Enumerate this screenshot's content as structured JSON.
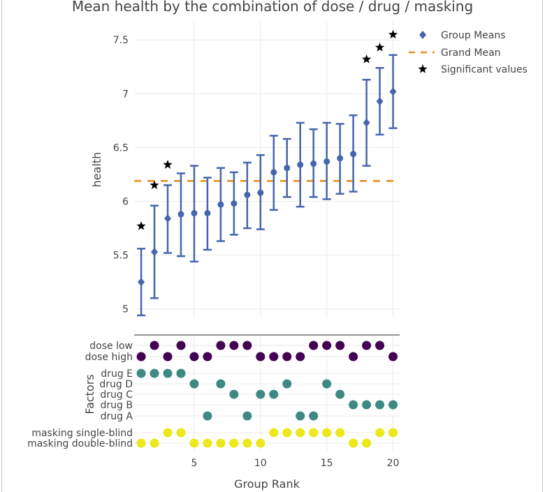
{
  "chart_data": [
    {
      "type": "scatter",
      "title": "Mean health by the combination of dose / drug / masking",
      "xlabel": "",
      "ylabel": "health",
      "ylim": [
        4.92,
        7.67
      ],
      "xlim": [
        0.47,
        20.5
      ],
      "yticks": [
        5,
        5.5,
        6,
        6.5,
        7,
        7.5
      ],
      "ytick_labels": [
        "5",
        "5.5",
        "6",
        "6.5",
        "7",
        "7.5"
      ],
      "grid": true,
      "legend": {
        "placement": "top-right",
        "entries": [
          {
            "label": "Group Means",
            "symbol": "diamond",
            "color": "#4565ad"
          },
          {
            "label": "Grand Mean",
            "symbol": "dash",
            "color": "#e8891c"
          },
          {
            "label": "Significant values",
            "symbol": "star",
            "color": "#000000"
          }
        ]
      },
      "grand_mean": 6.19,
      "x": [
        1,
        2,
        3,
        4,
        5,
        6,
        7,
        8,
        9,
        10,
        11,
        12,
        13,
        14,
        15,
        16,
        17,
        18,
        19,
        20
      ],
      "series": [
        {
          "name": "Group Means",
          "values": [
            5.25,
            5.53,
            5.84,
            5.88,
            5.89,
            5.89,
            5.97,
            5.98,
            6.06,
            6.08,
            6.27,
            6.31,
            6.34,
            6.35,
            6.37,
            6.4,
            6.44,
            6.73,
            6.93,
            7.02
          ],
          "error_upper": [
            5.56,
            5.96,
            6.15,
            6.26,
            6.33,
            6.22,
            6.31,
            6.27,
            6.36,
            6.43,
            6.61,
            6.58,
            6.73,
            6.67,
            6.73,
            6.72,
            6.8,
            7.13,
            7.24,
            7.36
          ],
          "error_lower": [
            4.94,
            5.1,
            5.52,
            5.49,
            5.44,
            5.55,
            5.63,
            5.69,
            5.75,
            5.74,
            5.92,
            6.04,
            5.95,
            6.04,
            6.02,
            6.07,
            6.09,
            6.33,
            6.62,
            6.68
          ]
        },
        {
          "name": "Significant values",
          "x": [
            1,
            2,
            3,
            18,
            19,
            20
          ],
          "values": [
            5.77,
            6.15,
            6.34,
            7.32,
            7.43,
            7.55
          ]
        }
      ],
      "colors": {
        "means": "#4565ad",
        "grand_mean": "#e8891c",
        "star": "#000000",
        "grid": "#ebebeb"
      }
    },
    {
      "type": "scatter",
      "title": "",
      "xlabel": "Group Rank",
      "ylabel": "Factors",
      "xlim": [
        0.47,
        20.5
      ],
      "xticks": [
        5,
        10,
        15,
        20
      ],
      "xtick_labels": [
        "5",
        "10",
        "15",
        "20"
      ],
      "grid": true,
      "rows": [
        {
          "label": "dose low",
          "group": "dose",
          "color": "#440154",
          "ranks": [
            2,
            4,
            7,
            8,
            9,
            14,
            15,
            16,
            18,
            19
          ]
        },
        {
          "label": "dose high",
          "group": "dose",
          "color": "#440154",
          "ranks": [
            1,
            3,
            5,
            6,
            10,
            11,
            12,
            13,
            17,
            20
          ]
        },
        {
          "label": "drug E",
          "group": "drug",
          "color": "#3e8a83",
          "ranks": [
            1,
            2,
            3,
            4
          ]
        },
        {
          "label": "drug D",
          "group": "drug",
          "color": "#3e8a83",
          "ranks": [
            5,
            7,
            12,
            15
          ]
        },
        {
          "label": "drug C",
          "group": "drug",
          "color": "#3e8a83",
          "ranks": [
            8,
            10,
            11,
            16
          ]
        },
        {
          "label": "drug B",
          "group": "drug",
          "color": "#3e8a83",
          "ranks": [
            17,
            18,
            19,
            20
          ]
        },
        {
          "label": "drug A",
          "group": "drug",
          "color": "#3e8a83",
          "ranks": [
            6,
            9,
            13,
            14
          ]
        },
        {
          "label": "masking single-blind",
          "group": "masking",
          "color": "#ece81a",
          "ranks": [
            3,
            4,
            11,
            12,
            13,
            14,
            15,
            16,
            19,
            20
          ]
        },
        {
          "label": "masking double-blind",
          "group": "masking",
          "color": "#ece81a",
          "ranks": [
            1,
            2,
            5,
            6,
            7,
            8,
            9,
            10,
            17,
            18
          ]
        }
      ]
    }
  ]
}
